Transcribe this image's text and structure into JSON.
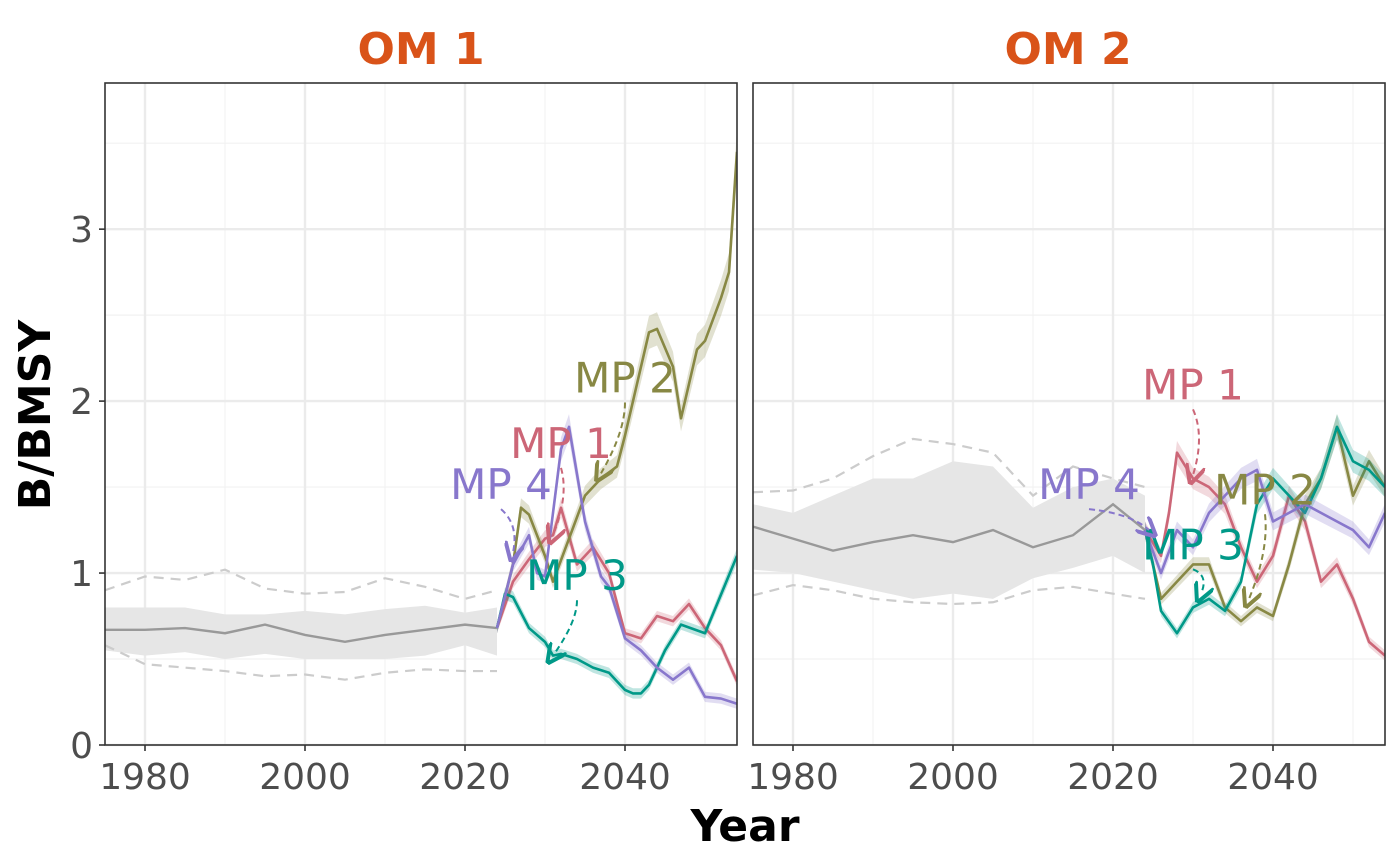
{
  "chart_data": {
    "type": "line",
    "xlabel": "Year",
    "ylabel": "B/BMSY",
    "xlim": [
      1975,
      2054
    ],
    "ylim": [
      0,
      3.85
    ],
    "x_ticks": [
      1980,
      2000,
      2020,
      2040
    ],
    "y_ticks": [
      0,
      1,
      2,
      3
    ],
    "grid": true,
    "colors": {
      "historical": "#999999",
      "historical_ribbon": "#e6e6e6",
      "title": "#d95319",
      "MP 1": "#cc6677",
      "MP 2": "#888844",
      "MP 3": "#009988",
      "MP 4": "#8877cc"
    },
    "panels": [
      {
        "title": "OM 1",
        "historical": {
          "x": [
            1975,
            1980,
            1985,
            1990,
            1995,
            2000,
            2005,
            2010,
            2015,
            2020,
            2024
          ],
          "median": [
            0.67,
            0.67,
            0.68,
            0.65,
            0.7,
            0.64,
            0.6,
            0.64,
            0.67,
            0.7,
            0.68
          ],
          "lower": [
            0.55,
            0.52,
            0.54,
            0.5,
            0.53,
            0.5,
            0.5,
            0.5,
            0.52,
            0.58,
            0.52
          ],
          "upper": [
            0.8,
            0.8,
            0.8,
            0.76,
            0.76,
            0.78,
            0.76,
            0.79,
            0.81,
            0.77,
            0.8
          ],
          "lower_dashed": [
            0.58,
            0.47,
            0.45,
            0.43,
            0.4,
            0.41,
            0.38,
            0.42,
            0.44,
            0.43,
            0.43
          ],
          "upper_dashed": [
            0.9,
            0.98,
            0.96,
            1.02,
            0.91,
            0.88,
            0.89,
            0.97,
            0.92,
            0.85,
            0.9
          ]
        },
        "series": [
          {
            "name": "MP 1",
            "x": [
              2024,
              2026,
              2028,
              2030,
              2031,
              2032,
              2034,
              2036,
              2038,
              2040,
              2042,
              2044,
              2046,
              2048,
              2050,
              2052,
              2054
            ],
            "values": [
              0.68,
              0.95,
              1.08,
              1.2,
              1.22,
              1.38,
              1.05,
              1.15,
              1.0,
              0.65,
              0.62,
              0.75,
              0.72,
              0.82,
              0.68,
              0.58,
              0.37
            ]
          },
          {
            "name": "MP 2",
            "x": [
              2024,
              2026,
              2027,
              2028,
              2030,
              2031,
              2033,
              2035,
              2037,
              2039,
              2040,
              2042,
              2043,
              2044,
              2046,
              2047,
              2048,
              2049,
              2050,
              2052,
              2053,
              2054
            ],
            "values": [
              0.68,
              1.05,
              1.38,
              1.34,
              1.1,
              0.95,
              1.2,
              1.45,
              1.55,
              1.62,
              1.8,
              2.2,
              2.4,
              2.42,
              2.2,
              1.9,
              2.1,
              2.3,
              2.35,
              2.6,
              2.75,
              3.45
            ]
          },
          {
            "name": "MP 3",
            "x": [
              2024,
              2025,
              2026,
              2028,
              2030,
              2031,
              2032,
              2034,
              2036,
              2038,
              2040,
              2041,
              2042,
              2043,
              2045,
              2047,
              2050,
              2054
            ],
            "values": [
              0.68,
              0.88,
              0.86,
              0.68,
              0.6,
              0.52,
              0.53,
              0.5,
              0.45,
              0.42,
              0.32,
              0.3,
              0.3,
              0.35,
              0.55,
              0.7,
              0.65,
              1.1
            ]
          },
          {
            "name": "MP 4",
            "x": [
              2024,
              2026,
              2028,
              2029,
              2030,
              2031,
              2032,
              2033,
              2035,
              2037,
              2038,
              2040,
              2042,
              2044,
              2046,
              2048,
              2050,
              2052,
              2054
            ],
            "values": [
              0.68,
              1.05,
              1.22,
              1.0,
              0.98,
              1.35,
              1.72,
              1.85,
              1.3,
              0.98,
              0.92,
              0.62,
              0.55,
              0.45,
              0.38,
              0.45,
              0.28,
              0.27,
              0.24
            ]
          }
        ],
        "labels": [
          {
            "text": "MP 1",
            "x": 2032,
            "y": 1.67,
            "ax": 2031,
            "ay": 1.22
          },
          {
            "text": "MP 2",
            "x": 2040,
            "y": 2.05,
            "ax": 2037,
            "ay": 1.58
          },
          {
            "text": "MP 3",
            "x": 2034,
            "y": 0.9,
            "ax": 2031,
            "ay": 0.52
          },
          {
            "text": "MP 4",
            "x": 2024.5,
            "y": 1.43,
            "ax": 2026,
            "ay": 1.12
          }
        ]
      },
      {
        "title": "OM 2",
        "historical": {
          "x": [
            1975,
            1980,
            1985,
            1990,
            1995,
            2000,
            2005,
            2010,
            2015,
            2020,
            2024
          ],
          "median": [
            1.27,
            1.2,
            1.13,
            1.18,
            1.22,
            1.18,
            1.25,
            1.15,
            1.22,
            1.4,
            1.25
          ],
          "lower": [
            1.02,
            1.0,
            0.95,
            0.9,
            0.85,
            0.88,
            0.85,
            0.97,
            1.03,
            1.1,
            1.0
          ],
          "upper": [
            1.4,
            1.35,
            1.45,
            1.55,
            1.55,
            1.65,
            1.62,
            1.38,
            1.5,
            1.55,
            1.45
          ],
          "lower_dashed": [
            0.87,
            0.93,
            0.9,
            0.85,
            0.83,
            0.82,
            0.83,
            0.9,
            0.92,
            0.88,
            0.85
          ],
          "upper_dashed": [
            1.47,
            1.48,
            1.55,
            1.68,
            1.78,
            1.75,
            1.7,
            1.45,
            1.62,
            1.55,
            1.5
          ]
        },
        "series": [
          {
            "name": "MP 1",
            "x": [
              2024,
              2026,
              2027,
              2028,
              2030,
              2032,
              2034,
              2036,
              2038,
              2040,
              2042,
              2044,
              2046,
              2048,
              2050,
              2052,
              2054
            ],
            "values": [
              1.25,
              1.1,
              1.35,
              1.7,
              1.55,
              1.5,
              1.4,
              1.15,
              0.95,
              1.1,
              1.45,
              1.3,
              0.95,
              1.05,
              0.85,
              0.6,
              0.52
            ]
          },
          {
            "name": "MP 2",
            "x": [
              2024,
              2026,
              2028,
              2030,
              2032,
              2034,
              2036,
              2038,
              2040,
              2042,
              2044,
              2046,
              2048,
              2050,
              2052,
              2054
            ],
            "values": [
              1.25,
              0.85,
              0.95,
              1.05,
              1.05,
              0.8,
              0.72,
              0.8,
              0.75,
              1.05,
              1.4,
              1.55,
              1.85,
              1.45,
              1.65,
              1.5
            ]
          },
          {
            "name": "MP 3",
            "x": [
              2024,
              2025,
              2026,
              2028,
              2030,
              2032,
              2034,
              2036,
              2038,
              2040,
              2042,
              2044,
              2046,
              2048,
              2050,
              2052,
              2054
            ],
            "values": [
              1.25,
              1.05,
              0.78,
              0.65,
              0.8,
              0.85,
              0.78,
              0.95,
              1.4,
              1.55,
              1.45,
              1.35,
              1.55,
              1.85,
              1.65,
              1.6,
              1.5
            ]
          },
          {
            "name": "MP 4",
            "x": [
              2024,
              2026,
              2028,
              2030,
              2032,
              2034,
              2036,
              2038,
              2040,
              2042,
              2044,
              2046,
              2048,
              2050,
              2052,
              2054
            ],
            "values": [
              1.25,
              1.0,
              1.25,
              1.15,
              1.35,
              1.45,
              1.55,
              1.6,
              1.3,
              1.35,
              1.4,
              1.35,
              1.3,
              1.25,
              1.15,
              1.35
            ]
          }
        ],
        "labels": [
          {
            "text": "MP 1",
            "x": 2030,
            "y": 2.01,
            "ax": 2030,
            "ay": 1.57
          },
          {
            "text": "MP 2",
            "x": 2039,
            "y": 1.4,
            "ax": 2037,
            "ay": 0.85
          },
          {
            "text": "MP 3",
            "x": 2030,
            "y": 1.08,
            "ax": 2031,
            "ay": 0.88
          },
          {
            "text": "MP 4",
            "x": 2017,
            "y": 1.43,
            "ax": 2024.5,
            "ay": 1.25
          }
        ]
      }
    ]
  }
}
